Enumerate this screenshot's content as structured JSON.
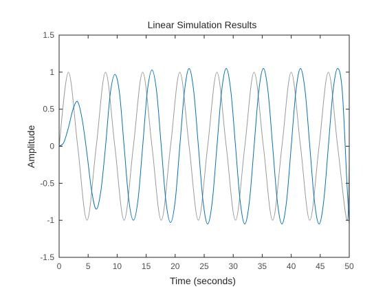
{
  "chart_data": {
    "type": "line",
    "title": "Linear Simulation Results",
    "xlabel": "Time (seconds)",
    "ylabel": "Amplitude",
    "xlim": [
      0,
      50
    ],
    "ylim": [
      -1.5,
      1.5
    ],
    "xticks": [
      0,
      5,
      10,
      15,
      20,
      25,
      30,
      35,
      40,
      45,
      50
    ],
    "yticks": [
      -1.5,
      -1,
      -0.5,
      0,
      0.5,
      1,
      1.5
    ],
    "xtick_labels": [
      "0",
      "5",
      "10",
      "15",
      "20",
      "25",
      "30",
      "35",
      "40",
      "45",
      "50"
    ],
    "ytick_labels": [
      "-1.5",
      "-1",
      "-0.5",
      "0",
      "0.5",
      "1",
      "1.5"
    ],
    "grid": false,
    "series": [
      {
        "role": "input",
        "color": "#999999",
        "x": [
          0,
          1.6,
          3.2,
          4.8,
          6.4,
          8.0,
          9.6,
          11.2,
          12.8,
          14.4,
          16.0,
          17.6,
          19.2,
          20.8,
          22.4,
          24.0,
          25.6,
          27.2,
          28.8,
          30.4,
          32.0,
          33.6,
          35.2,
          36.8,
          38.4,
          40.0,
          41.6,
          43.2,
          44.8,
          46.4,
          48.0,
          49.6,
          50
        ],
        "y": [
          0,
          1,
          0,
          -1,
          0,
          1,
          0,
          -1,
          0,
          1,
          0,
          -1,
          0,
          1,
          0,
          -1,
          0,
          1,
          0,
          -1,
          0,
          1,
          0,
          -1,
          0,
          1,
          0,
          -1,
          0,
          1,
          0,
          -1,
          -0.25
        ]
      },
      {
        "role": "response",
        "color": "#0072bd",
        "x": [
          0,
          0.8,
          1.6,
          2.4,
          3.2,
          4.0,
          4.8,
          5.6,
          6.4,
          7.2,
          8.0,
          8.8,
          9.6,
          10.4,
          11.2,
          12.0,
          12.8,
          13.6,
          14.4,
          15.2,
          16.0,
          16.8,
          17.6,
          18.4,
          19.2,
          20.0,
          20.8,
          21.6,
          22.4,
          23.2,
          24.0,
          24.8,
          25.6,
          26.4,
          27.2,
          28.0,
          28.8,
          29.6,
          30.4,
          31.2,
          32.0,
          32.8,
          33.6,
          34.4,
          35.2,
          36.0,
          36.8,
          37.6,
          38.4,
          39.2,
          40.0,
          40.8,
          41.6,
          42.4,
          43.2,
          44.0,
          44.8,
          45.6,
          46.4,
          47.2,
          48.0,
          48.8,
          49.6,
          50
        ],
        "y": [
          0,
          0.05,
          0.25,
          0.5,
          0.6,
          0.35,
          -0.1,
          -0.6,
          -0.85,
          -0.6,
          0.0,
          0.7,
          0.97,
          0.72,
          0.0,
          -0.72,
          -1.0,
          -0.72,
          0.0,
          0.74,
          1.03,
          0.74,
          0.0,
          -0.74,
          -1.03,
          -0.74,
          0.0,
          0.74,
          1.05,
          0.74,
          0.0,
          -0.74,
          -1.05,
          -0.74,
          0.0,
          0.74,
          1.05,
          0.74,
          0.0,
          -0.74,
          -1.05,
          -0.74,
          0.0,
          0.74,
          1.05,
          0.74,
          0.0,
          -0.74,
          -1.05,
          -0.74,
          0.0,
          0.74,
          1.05,
          0.74,
          0.0,
          -0.74,
          -1.05,
          -0.74,
          0.0,
          0.74,
          1.05,
          0.74,
          -0.5,
          -1.05
        ]
      }
    ]
  }
}
